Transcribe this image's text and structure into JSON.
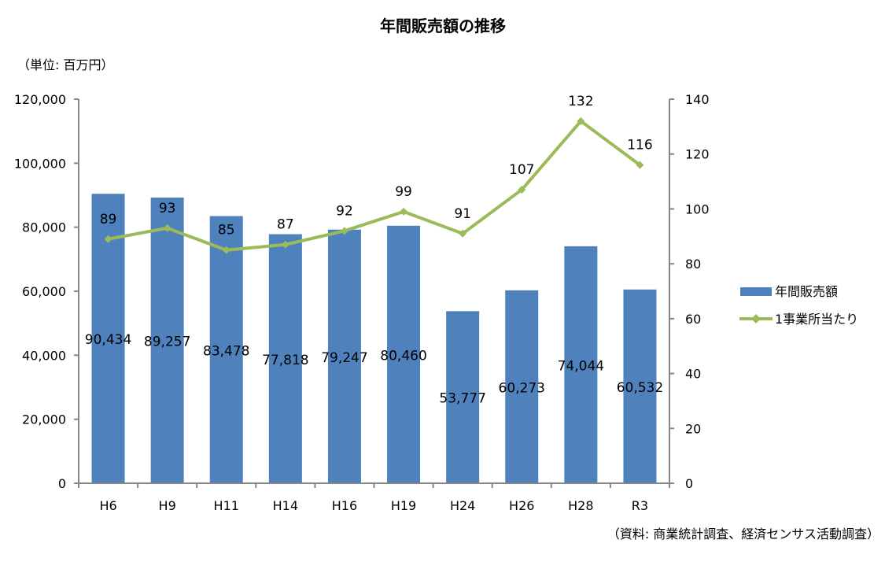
{
  "chart_data": {
    "type": "bar+line",
    "title": "年間販売額の推移",
    "unit_label": "（単位: 百万円）",
    "source_note": "（資料: 商業統計調査、経済センサス活動調査）",
    "categories": [
      "H6",
      "H9",
      "H11",
      "H14",
      "H16",
      "H19",
      "H24",
      "H26",
      "H28",
      "R3"
    ],
    "series": [
      {
        "name": "年間販売額",
        "type": "bar",
        "axis": "left",
        "color": "#4F81BD",
        "values": [
          90434,
          89257,
          83478,
          77818,
          79247,
          80460,
          53777,
          60273,
          74044,
          60532
        ],
        "labels": [
          "90,434",
          "89,257",
          "83,478",
          "77,818",
          "79,247",
          "80,460",
          "53,777",
          "60,273",
          "74,044",
          "60,532"
        ]
      },
      {
        "name": "1事業所当たり",
        "type": "line",
        "axis": "right",
        "color": "#9BBB59",
        "values": [
          89,
          93,
          85,
          87,
          92,
          99,
          91,
          107,
          132,
          116
        ],
        "labels": [
          "89",
          "93",
          "85",
          "87",
          "92",
          "99",
          "91",
          "107",
          "132",
          "116"
        ]
      }
    ],
    "y_left": {
      "range": [
        0,
        120000
      ],
      "ticks": [
        "0",
        "20,000",
        "40,000",
        "60,000",
        "80,000",
        "100,000",
        "120,000"
      ]
    },
    "y_right": {
      "range": [
        0,
        140
      ],
      "ticks": [
        "0",
        "20",
        "40",
        "60",
        "80",
        "100",
        "120",
        "140"
      ]
    },
    "grid": false,
    "legend": "right"
  }
}
